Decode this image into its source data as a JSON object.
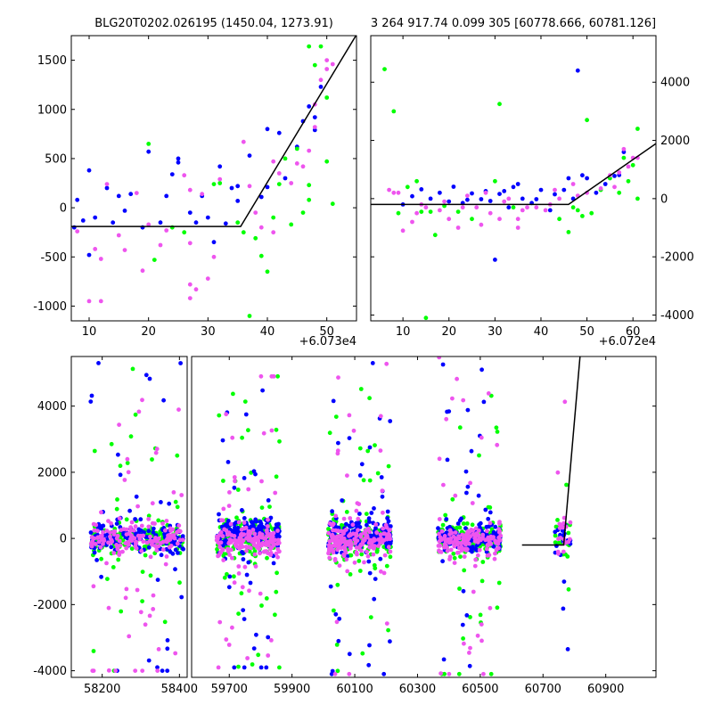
{
  "figure": {
    "panel_a_title": "BLG20T0202.026195 (1450.04, 1273.91)",
    "panel_b_title": "3 264 917.74 0.099 305 [60778.666, 60781.126]",
    "panel_a_offset": "+6.073e4",
    "panel_b_offset": "+6.072e4"
  },
  "series_colors": {
    "blue": "#0000ff",
    "green": "#00ff00",
    "magenta": "#ee55ee",
    "fit": "#000000"
  },
  "chart_data": [
    {
      "id": "panel_a",
      "type": "scatter",
      "title": "BLG20T0202.026195 (1450.04, 1273.91)",
      "x_offset_label": "+6.073e4",
      "xlim": [
        7,
        55
      ],
      "ylim": [
        -1150,
        1750
      ],
      "xticks": [
        10,
        20,
        30,
        40,
        50
      ],
      "yticks": [
        -1000,
        -500,
        0,
        500,
        1000,
        1500
      ],
      "ytick_side": "left",
      "series": [
        {
          "name": "blue",
          "points": [
            [
              7.5,
              -200
            ],
            [
              8,
              80
            ],
            [
              9,
              -130
            ],
            [
              10,
              380
            ],
            [
              10,
              -480
            ],
            [
              11,
              -100
            ],
            [
              13,
              200
            ],
            [
              14,
              -150
            ],
            [
              15,
              120
            ],
            [
              16,
              -30
            ],
            [
              17,
              140
            ],
            [
              19,
              -200
            ],
            [
              20,
              570
            ],
            [
              22,
              -150
            ],
            [
              23,
              120
            ],
            [
              24,
              340
            ],
            [
              25,
              500
            ],
            [
              25,
              460
            ],
            [
              27,
              -50
            ],
            [
              28,
              -150
            ],
            [
              29,
              120
            ],
            [
              30,
              -100
            ],
            [
              31,
              -350
            ],
            [
              32,
              420
            ],
            [
              33,
              -160
            ],
            [
              34,
              200
            ],
            [
              35,
              220
            ],
            [
              35,
              70
            ],
            [
              37,
              530
            ],
            [
              39,
              110
            ],
            [
              40,
              800
            ],
            [
              40,
              210
            ],
            [
              42,
              760
            ],
            [
              43,
              300
            ],
            [
              45,
              620
            ],
            [
              46,
              880
            ],
            [
              47,
              1030
            ],
            [
              48,
              920
            ],
            [
              48,
              790
            ],
            [
              49,
              1230
            ]
          ]
        },
        {
          "name": "green",
          "points": [
            [
              20,
              650
            ],
            [
              21,
              -530
            ],
            [
              24,
              -200
            ],
            [
              26,
              -250
            ],
            [
              31,
              240
            ],
            [
              32,
              250
            ],
            [
              35,
              -150
            ],
            [
              36,
              -250
            ],
            [
              37,
              -1100
            ],
            [
              38,
              -310
            ],
            [
              39,
              -490
            ],
            [
              40,
              -650
            ],
            [
              41,
              -100
            ],
            [
              42,
              240
            ],
            [
              43,
              500
            ],
            [
              44,
              -170
            ],
            [
              45,
              600
            ],
            [
              46,
              -50
            ],
            [
              47,
              230
            ],
            [
              47,
              80
            ],
            [
              47,
              1640
            ],
            [
              48,
              1450
            ],
            [
              49,
              1640
            ],
            [
              50,
              470
            ],
            [
              50,
              1120
            ],
            [
              51,
              40
            ]
          ]
        },
        {
          "name": "magenta",
          "points": [
            [
              8,
              -240
            ],
            [
              10,
              -950
            ],
            [
              12,
              -950
            ],
            [
              11,
              -420
            ],
            [
              12,
              -520
            ],
            [
              13,
              240
            ],
            [
              15,
              -280
            ],
            [
              16,
              -430
            ],
            [
              18,
              150
            ],
            [
              19,
              -640
            ],
            [
              20,
              -170
            ],
            [
              22,
              -380
            ],
            [
              23,
              -230
            ],
            [
              26,
              330
            ],
            [
              27,
              180
            ],
            [
              27,
              -360
            ],
            [
              27,
              -920
            ],
            [
              27,
              -780
            ],
            [
              28,
              -830
            ],
            [
              29,
              140
            ],
            [
              30,
              -720
            ],
            [
              31,
              -500
            ],
            [
              32,
              290
            ],
            [
              36,
              670
            ],
            [
              37,
              220
            ],
            [
              38,
              -50
            ],
            [
              39,
              -200
            ],
            [
              41,
              -250
            ],
            [
              41,
              470
            ],
            [
              42,
              350
            ],
            [
              44,
              250
            ],
            [
              45,
              450
            ],
            [
              46,
              420
            ],
            [
              47,
              580
            ],
            [
              48,
              1050
            ],
            [
              48,
              820
            ],
            [
              49,
              1300
            ],
            [
              50,
              1500
            ],
            [
              50,
              1410
            ],
            [
              51,
              1460
            ]
          ]
        }
      ],
      "fit_line": [
        [
          7,
          -190
        ],
        [
          35.5,
          -190
        ],
        [
          55,
          1760
        ]
      ]
    },
    {
      "id": "panel_b",
      "type": "scatter",
      "title": "3 264 917.74 0.099 305 [60778.666, 60781.126]",
      "x_offset_label": "+6.072e4",
      "xlim": [
        3,
        65
      ],
      "ylim": [
        -4200,
        5600
      ],
      "xticks": [
        10,
        20,
        30,
        40,
        50,
        60
      ],
      "yticks": [
        -4000,
        -2000,
        0,
        2000,
        4000
      ],
      "ytick_side": "right",
      "series": [
        {
          "name": "blue",
          "points": [
            [
              10,
              -200
            ],
            [
              12,
              80
            ],
            [
              14,
              320
            ],
            [
              16,
              0
            ],
            [
              18,
              200
            ],
            [
              20,
              -100
            ],
            [
              21,
              410
            ],
            [
              23,
              -150
            ],
            [
              24,
              -40
            ],
            [
              25,
              180
            ],
            [
              27,
              -20
            ],
            [
              28,
              260
            ],
            [
              29,
              -80
            ],
            [
              30,
              -2100
            ],
            [
              31,
              160
            ],
            [
              32,
              260
            ],
            [
              33,
              -300
            ],
            [
              34,
              400
            ],
            [
              35,
              500
            ],
            [
              36,
              0
            ],
            [
              38,
              -150
            ],
            [
              39,
              -20
            ],
            [
              40,
              300
            ],
            [
              42,
              -400
            ],
            [
              43,
              150
            ],
            [
              45,
              300
            ],
            [
              46,
              700
            ],
            [
              47,
              0
            ],
            [
              48,
              4400
            ],
            [
              49,
              800
            ],
            [
              50,
              700
            ],
            [
              52,
              200
            ],
            [
              54,
              500
            ],
            [
              56,
              780
            ],
            [
              57,
              810
            ],
            [
              58,
              1600
            ]
          ]
        },
        {
          "name": "green",
          "points": [
            [
              6,
              4450
            ],
            [
              8,
              3000
            ],
            [
              9,
              -500
            ],
            [
              11,
              400
            ],
            [
              13,
              600
            ],
            [
              14,
              -450
            ],
            [
              15,
              -4100
            ],
            [
              16,
              -450
            ],
            [
              17,
              -1250
            ],
            [
              19,
              -250
            ],
            [
              22,
              -450
            ],
            [
              25,
              -700
            ],
            [
              30,
              600
            ],
            [
              31,
              3250
            ],
            [
              34,
              -300
            ],
            [
              44,
              -700
            ],
            [
              46,
              -1150
            ],
            [
              47,
              -300
            ],
            [
              48,
              -400
            ],
            [
              49,
              -600
            ],
            [
              50,
              2700
            ],
            [
              51,
              -500
            ],
            [
              53,
              300
            ],
            [
              55,
              700
            ],
            [
              57,
              200
            ],
            [
              58,
              1400
            ],
            [
              59,
              600
            ],
            [
              60,
              1150
            ],
            [
              61,
              2400
            ],
            [
              61,
              0
            ]
          ]
        },
        {
          "name": "magenta",
          "points": [
            [
              7,
              300
            ],
            [
              8,
              200
            ],
            [
              9,
              200
            ],
            [
              10,
              -1100
            ],
            [
              12,
              -800
            ],
            [
              13,
              -500
            ],
            [
              14,
              -200
            ],
            [
              15,
              -300
            ],
            [
              18,
              -400
            ],
            [
              19,
              -100
            ],
            [
              20,
              -700
            ],
            [
              22,
              -1000
            ],
            [
              23,
              -300
            ],
            [
              24,
              100
            ],
            [
              26,
              -300
            ],
            [
              27,
              -900
            ],
            [
              28,
              200
            ],
            [
              29,
              -500
            ],
            [
              31,
              -700
            ],
            [
              32,
              -100
            ],
            [
              33,
              0
            ],
            [
              35,
              -1000
            ],
            [
              35,
              -700
            ],
            [
              36,
              -400
            ],
            [
              37,
              -300
            ],
            [
              39,
              -300
            ],
            [
              41,
              -400
            ],
            [
              42,
              -200
            ],
            [
              43,
              300
            ],
            [
              44,
              0
            ],
            [
              47,
              500
            ],
            [
              48,
              100
            ],
            [
              50,
              200
            ],
            [
              53,
              350
            ],
            [
              55,
              800
            ],
            [
              56,
              400
            ],
            [
              57,
              900
            ],
            [
              58,
              1700
            ],
            [
              59,
              1100
            ],
            [
              60,
              1400
            ],
            [
              61,
              1400
            ]
          ]
        }
      ],
      "fit_line": [
        [
          3,
          -200
        ],
        [
          46,
          -200
        ],
        [
          65,
          1890
        ]
      ]
    },
    {
      "id": "panel_c",
      "type": "scatter",
      "x_segments": [
        [
          58120,
          58420
        ],
        [
          59580,
          61060
        ]
      ],
      "ylim": [
        -4200,
        5500
      ],
      "xticks": [
        58200,
        58400,
        59700,
        59900,
        60100,
        60300,
        60500,
        60700,
        60900
      ],
      "yticks": [
        -4000,
        -2000,
        0,
        2000,
        4000
      ],
      "seasons": [
        {
          "x": [
            58170,
            58410
          ],
          "core_std": 200,
          "blue_bias": 20,
          "n": 520,
          "out_range": [
            -4000,
            5300
          ]
        },
        {
          "x": [
            59660,
            59860
          ],
          "core_std": 240,
          "blue_bias": 90,
          "n": 560,
          "out_range": [
            -3900,
            4900
          ]
        },
        {
          "x": [
            60015,
            60215
          ],
          "core_std": 240,
          "blue_bias": 100,
          "n": 560,
          "out_range": [
            -4100,
            5300
          ]
        },
        {
          "x": [
            60365,
            60565
          ],
          "core_std": 220,
          "blue_bias": 40,
          "n": 500,
          "out_range": [
            -4100,
            5500
          ]
        },
        {
          "x": [
            60738,
            60788
          ],
          "core_std": 250,
          "blue_bias": 0,
          "n": 60,
          "out_range": [
            -4000,
            4400
          ]
        }
      ],
      "fit_line": [
        [
          60633,
          -200
        ],
        [
          60766,
          -200
        ],
        [
          60818,
          5500
        ]
      ]
    }
  ]
}
